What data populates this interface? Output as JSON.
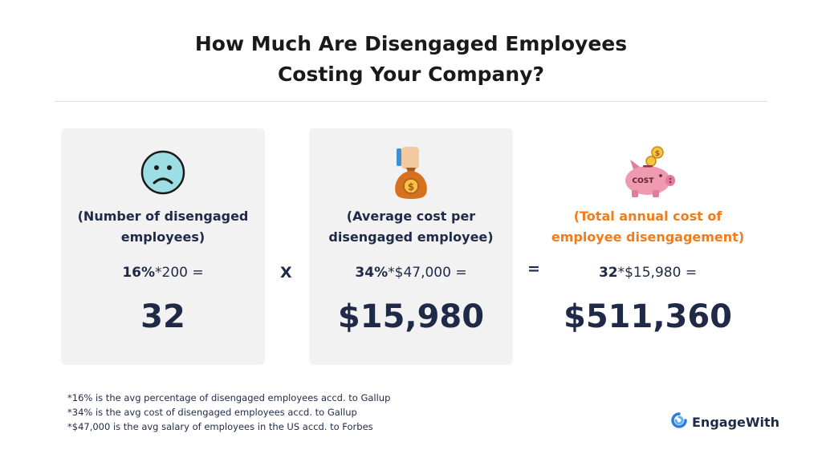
{
  "title": {
    "line1": "How Much Are Disengaged Employees",
    "line2": "Costing Your Company?"
  },
  "cards": [
    {
      "icon": "sad-face-icon",
      "label_line1": "(Number of disengaged",
      "label_line2": "employees)",
      "formula_bold": "16%",
      "formula_rest": "*200 =",
      "result": "32"
    },
    {
      "icon": "money-bag-hand-icon",
      "label_line1": "(Average cost per",
      "label_line2": "disengaged employee)",
      "formula_bold": "34%",
      "formula_rest": "*$47,000 =",
      "result": "$15,980"
    },
    {
      "icon": "piggy-bank-cost-icon",
      "label_line1": "(Total annual cost of",
      "label_line2": "employee disengagement)",
      "formula_bold": "32",
      "formula_rest": "*$15,980 =",
      "result": "$511,360"
    }
  ],
  "operators": {
    "times": "X",
    "equals": "="
  },
  "piggy_label": "COST",
  "coin_symbol": "$",
  "footnotes": [
    "*16% is the avg percentage of disengaged employees accd. to Gallup",
    "*34% is the avg cost of disengaged employees accd. to Gallup",
    "*$47,000 is the avg salary of employees in the US accd. to Forbes"
  ],
  "brand": {
    "name": "EngageWith",
    "logo": "engagewith-logo-icon"
  },
  "colors": {
    "navy": "#1f2a48",
    "orange": "#f07c1c",
    "card_bg": "#f2f2f2"
  }
}
